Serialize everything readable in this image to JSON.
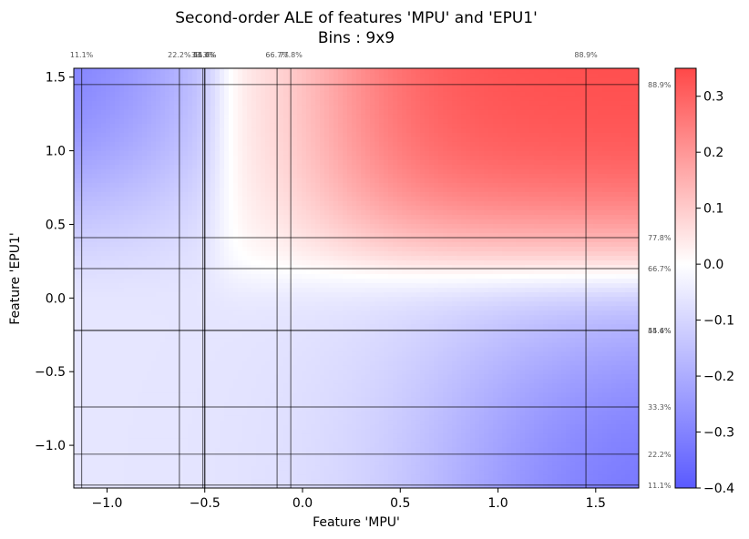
{
  "chart_data": {
    "type": "heatmap",
    "title": "Second-order ALE of features 'MPU' and 'EPU1'",
    "subtitle": "Bins : 9x9",
    "xlabel": "Feature 'MPU'",
    "ylabel": "Feature 'EPU1'",
    "xlim": [
      -1.17,
      1.72
    ],
    "ylim": [
      -1.29,
      1.56
    ],
    "x_ticks": [
      -1.0,
      -0.5,
      0.0,
      0.5,
      1.0,
      1.5
    ],
    "x_tick_labels": [
      "−1.0",
      "−0.5",
      "0.0",
      "0.5",
      "1.0",
      "1.5"
    ],
    "y_ticks": [
      -1.0,
      -0.5,
      0.0,
      0.5,
      1.0,
      1.5
    ],
    "y_tick_labels": [
      "−1.0",
      "−0.5",
      "0.0",
      "0.5",
      "1.0",
      "1.5"
    ],
    "x_quantiles": [
      {
        "value": -1.13,
        "label": "11.1%"
      },
      {
        "value": -0.63,
        "label": "22.2%"
      },
      {
        "value": -0.51,
        "label": "33.3%"
      },
      {
        "value": -0.5,
        "label": "44.4%"
      },
      {
        "value": -0.5,
        "label": "55.6%"
      },
      {
        "value": -0.13,
        "label": "66.7%"
      },
      {
        "value": -0.06,
        "label": "77.8%"
      },
      {
        "value": 1.45,
        "label": "88.9%"
      }
    ],
    "y_quantiles": [
      {
        "value": -1.27,
        "label": "11.1%"
      },
      {
        "value": -1.06,
        "label": "22.2%"
      },
      {
        "value": -0.74,
        "label": "33.3%"
      },
      {
        "value": -0.22,
        "label": "44.4%"
      },
      {
        "value": -0.22,
        "label": "55.6%"
      },
      {
        "value": 0.2,
        "label": "66.7%"
      },
      {
        "value": 0.41,
        "label": "77.8%"
      },
      {
        "value": 1.45,
        "label": "88.9%"
      }
    ],
    "colorbar": {
      "min": -0.4,
      "max": 0.35,
      "ticks": [
        0.3,
        0.2,
        0.1,
        0.0,
        -0.1,
        -0.2,
        -0.3,
        -0.4
      ],
      "tick_labels": [
        "0.3",
        "0.2",
        "0.1",
        "0.0",
        "−0.1",
        "−0.2",
        "−0.3",
        "−0.4"
      ],
      "colormap": "bwr",
      "low_color": "#5a5aff",
      "mid_color": "#ffffff",
      "high_color": "#ff4848"
    },
    "grid": false
  }
}
